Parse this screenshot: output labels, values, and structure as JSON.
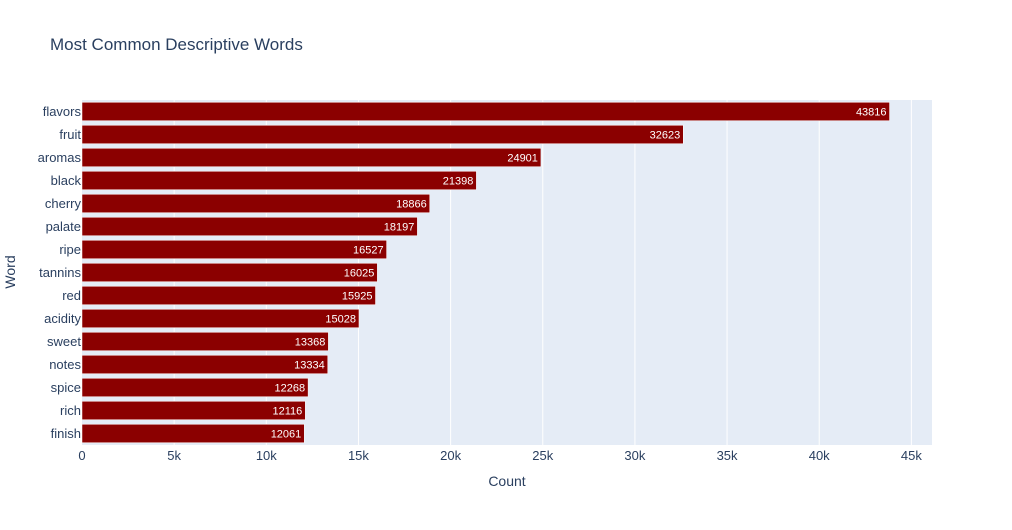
{
  "chart_data": {
    "type": "bar",
    "orientation": "horizontal",
    "title": "Most Common Descriptive Words",
    "xlabel": "Count",
    "ylabel": "Word",
    "categories": [
      "flavors",
      "fruit",
      "aromas",
      "black",
      "cherry",
      "palate",
      "ripe",
      "tannins",
      "red",
      "acidity",
      "sweet",
      "notes",
      "spice",
      "rich",
      "finish"
    ],
    "values": [
      43816,
      32623,
      24901,
      21398,
      18866,
      18197,
      16527,
      16025,
      15925,
      15028,
      13368,
      13334,
      12268,
      12116,
      12061
    ],
    "xlim": [
      0,
      46120
    ],
    "xticks": [
      0,
      5000,
      10000,
      15000,
      20000,
      25000,
      30000,
      35000,
      40000,
      45000
    ],
    "xtick_labels": [
      "0",
      "5k",
      "10k",
      "15k",
      "20k",
      "25k",
      "30k",
      "35k",
      "40k",
      "45k"
    ],
    "grid": true,
    "legend": "none",
    "colors": {
      "bar": "#8b0000",
      "plot_background": "#e5ecf6",
      "grid": "#ffffff",
      "text": "#2a3f5f",
      "data_label": "#ffffff"
    }
  }
}
